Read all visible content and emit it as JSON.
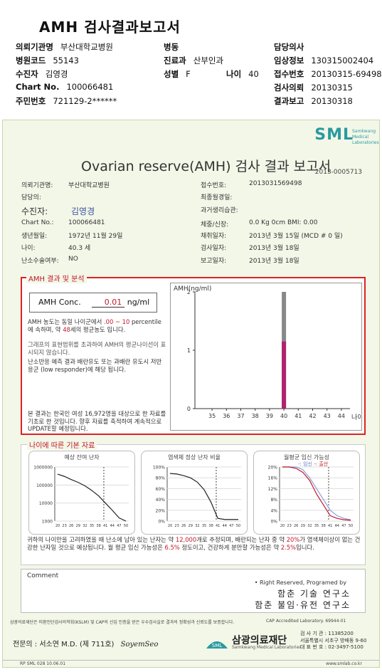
{
  "header": {
    "title": "AMH 검사결과보고서",
    "rows": [
      {
        "l1": "의뢰기관명",
        "v1": "부산대학교병원",
        "l2": "병동",
        "v2": "",
        "l3": "",
        "v3": "",
        "l4": "담당의사",
        "v4": ""
      },
      {
        "l1": "병원코드",
        "v1": "55143",
        "l2": "진료과",
        "v2": "산부인과",
        "l3": "",
        "v3": "",
        "l4": "임상정보",
        "v4": "130315002404"
      },
      {
        "l1": "수진자",
        "v1": "김영경",
        "l2": "성별",
        "v2": "F",
        "l3": "나이",
        "v3": "40",
        "l4": "접수번호",
        "v4": "20130315-69498"
      },
      {
        "l1": "Chart No.",
        "v1": "100066481",
        "l2": "",
        "v2": "",
        "l3": "",
        "v3": "",
        "l4": "검사의뢰",
        "v4": "20130315"
      },
      {
        "l1": "주민번호",
        "v1": "721129-2******",
        "l2": "",
        "v2": "",
        "l3": "",
        "v3": "",
        "l4": "결과보고",
        "v4": "20130318"
      }
    ]
  },
  "report": {
    "logo": "SML",
    "logo_sub": "Samkwang Medical Laboratories",
    "title": "Ovarian reserve(AMH) 검사 결과 보고서",
    "number": "2013-0005713",
    "left_info": [
      {
        "label": "의뢰기관명:",
        "value": "부산대학교병원"
      },
      {
        "label": "담당의:",
        "value": ""
      },
      {
        "label": "수진자:",
        "value": "김영경"
      },
      {
        "label": "Chart No.:",
        "value": "100066481"
      },
      {
        "label": "생년월일:",
        "value": "1972년 11월 29일"
      },
      {
        "label": "나이:",
        "value": "40.3 세"
      },
      {
        "label": "난소수술여부:",
        "value": "NO"
      }
    ],
    "right_info": [
      {
        "label": "접수번호:",
        "value": "2013031569498"
      },
      {
        "label": "최종월경일:",
        "value": ""
      },
      {
        "label": "과거생리습관:",
        "value": ""
      },
      {
        "label": "체중/신장:",
        "value": "0.0 Kg       0cm    BMI:  0.00"
      },
      {
        "label": "채취일자:",
        "value": "2013년 3월 15일   (MCD # 0 일)"
      },
      {
        "label": "검사일자:",
        "value": "2013년 3월 18일"
      },
      {
        "label": "보고일자:",
        "value": "2013년 3월 18일"
      }
    ],
    "amh_section": {
      "legend": "AMH 결과 및 분석",
      "conc_label": "AMH Conc.",
      "conc_value": "0.01",
      "conc_unit": "ng/ml",
      "para1_a": "AMH 농도는 동일 나이군에서",
      "para1_range": ".00 ~  10",
      "para1_b": "percentile에 속하며, 약",
      "para1_pct": "48",
      "para1_c": "세의 평균농도 입니다.",
      "para2": "그래프의 표현범위를 초과하여 AMH의 평균나이선이 표시되지 않습니다.",
      "para3": "난소반응 예측 결과 배란유도 또는 과배란 유도시 저반응군 (low responder)에 해당 됩니다.",
      "para4": "본 결과는 한국인 여성 16,972명을 대상으로 한 자료를 기초로 한 것입니다. 향후 자료를 축적하여 계속적으로 UPDATE할 예정입니다."
    },
    "age_section": {
      "legend": "나이에 따른 기본 자료",
      "chart1_title": "예상 잔여 난자",
      "chart2_title": "염색체 정상 난자 비율",
      "chart3_title": "월평균 임신 가능성",
      "chart3_legend_a": "-: 임신",
      "chart3_legend_b": "-: 출산",
      "summary_a": "귀하의 나이만을 고려하였을 때 난소에 남아 있는 난자는 약",
      "summary_v1": "12,000",
      "summary_b": "개로 추정되며, 배란되는 난자 중 약",
      "summary_v2": "20%",
      "summary_c": "가 염색체이상이 없는 건강한 난자일 것으로 예상됩니다. 월 평균 임신 가능성은",
      "summary_v3": "6.5%",
      "summary_d": "정도이고, 건강하게 분만할 가능성은 약",
      "summary_v4": "2.5%",
      "summary_e": "입니다."
    },
    "comment_label": "Comment",
    "rights": "• Right Reserved, Programed by",
    "lab1": "함춘 기술 연구소",
    "lab2": "함춘 불임·유전 연구소",
    "footer_note": "삼광의료재단은 미환진단검사의학회(KSLM) 및 CAP의 신입 인증을 받은 우수검사실로 결과의 정확성과 신뢰도를 보증합니다.",
    "cap": "CAP Accredited Laboratory. 69944-01",
    "signer": "전문의 : 서소연 M.D. (제 711호)",
    "signature": "SoyemSeo",
    "foundation_name": "삼광의료재단",
    "foundation_sub": "Samkwang Medical Laboratories",
    "contact_1": "검 사 기 관 : 11385200",
    "contact_2": "서울특별시 서초구 방배동 9-60",
    "contact_3": "대 표 번 호 : 02-3497-5100",
    "bottom_left": "RP SML 028 10.06.01",
    "bottom_right": "www.smlab.co.kr"
  },
  "chart_data": [
    {
      "type": "bar",
      "title": "",
      "ylabel": "AMH(ng/ml)",
      "xlabel": "나이",
      "categories": [
        "35",
        "36",
        "37",
        "38",
        "39",
        "40",
        "41",
        "42",
        "43",
        "44"
      ],
      "ylim": [
        0,
        2
      ],
      "yticks": [
        "0",
        "1",
        "2"
      ],
      "series": [
        {
          "values": [
            0,
            0,
            0,
            0,
            0,
            2.0,
            0,
            0,
            0,
            0
          ],
          "color": "#888888"
        },
        {
          "values": [
            0,
            0,
            0,
            0,
            0,
            1.15,
            0,
            0,
            0,
            0
          ],
          "color": "#b0226e"
        }
      ]
    },
    {
      "type": "line",
      "title": "예상 잔여 난자",
      "yscale": "log",
      "yticks": [
        "1000",
        "10000",
        "100000",
        "1000000"
      ],
      "xticks": [
        "20",
        "23",
        "26",
        "29",
        "32",
        "35",
        "38",
        "41",
        "44",
        "47",
        "50"
      ],
      "x": [
        20,
        23,
        26,
        29,
        32,
        35,
        38,
        41,
        44,
        47,
        50
      ],
      "values": [
        400000,
        300000,
        200000,
        140000,
        90000,
        50000,
        25000,
        10000,
        4000,
        1500,
        1000
      ]
    },
    {
      "type": "line",
      "title": "염색체 정상 난자 비율",
      "yticks": [
        "0%",
        "20%",
        "40%",
        "60%",
        "80%",
        "100%"
      ],
      "xticks": [
        "20",
        "23",
        "26",
        "29",
        "32",
        "35",
        "38",
        "41",
        "44",
        "47",
        "50"
      ],
      "x": [
        20,
        23,
        26,
        29,
        32,
        35,
        38,
        41,
        44,
        47,
        50
      ],
      "values": [
        88,
        87,
        84,
        80,
        72,
        58,
        35,
        5,
        3,
        3,
        3
      ]
    },
    {
      "type": "line",
      "title": "월평균 임신 가능성",
      "yticks": [
        "0%",
        "4%",
        "8%",
        "12%",
        "16%",
        "20%"
      ],
      "xticks": [
        "20",
        "23",
        "26",
        "29",
        "32",
        "35",
        "38",
        "41",
        "44",
        "47",
        "50"
      ],
      "x": [
        20,
        23,
        26,
        29,
        32,
        35,
        38,
        41,
        44,
        47,
        50
      ],
      "series": [
        {
          "name": "임신",
          "values": [
            20,
            20,
            20,
            19,
            16,
            12,
            8,
            4,
            2,
            1,
            0.5
          ],
          "color": "#8aa0d8"
        },
        {
          "name": "출산",
          "values": [
            20,
            20,
            19.5,
            18,
            15,
            10,
            6,
            2,
            1,
            0.5,
            0.3
          ],
          "color": "#c0182a"
        }
      ]
    }
  ]
}
